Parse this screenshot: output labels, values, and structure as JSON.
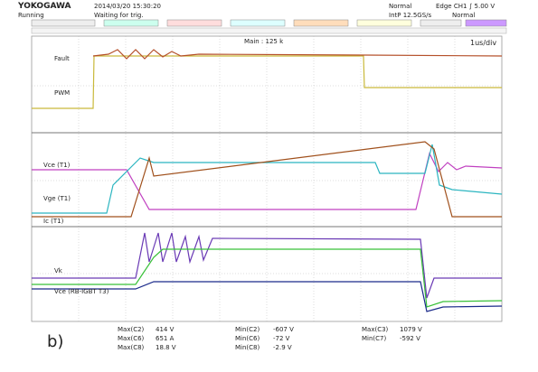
{
  "header": {
    "brand": "YOKOGAWA",
    "status": "Running",
    "datetime": "2014/03/20 15:30:20",
    "trigger_state": "Waiting for trig.",
    "mode": "Normal",
    "trigger": "Edge CH1 ∫ 5.00 V",
    "sampling": "IntP 12.5GS/s",
    "acq": "Normal",
    "main": "Main : 125 k",
    "timebase": "1us/div"
  },
  "panels": [
    {
      "labels": [
        "Fault",
        "PWM"
      ]
    },
    {
      "labels": [
        "Vce (T1)",
        "Vge (T1)",
        "Ic (T1)"
      ]
    },
    {
      "labels": [
        "Vk",
        "Vce (RB-IGBT T3)"
      ]
    }
  ],
  "figure_label": "b)",
  "measurements": [
    [
      "Max(C2)",
      "414 V"
    ],
    [
      "Max(C6)",
      "651 A"
    ],
    [
      "Max(C8)",
      "18.8 V"
    ],
    [
      "Min(C2)",
      "-607 V"
    ],
    [
      "Min(C6)",
      "-72 V"
    ],
    [
      "Min(C8)",
      "-2.9 V"
    ],
    [
      "Max(C3)",
      "1079 V"
    ],
    [
      "Min(C7)",
      "-592 V"
    ]
  ]
}
